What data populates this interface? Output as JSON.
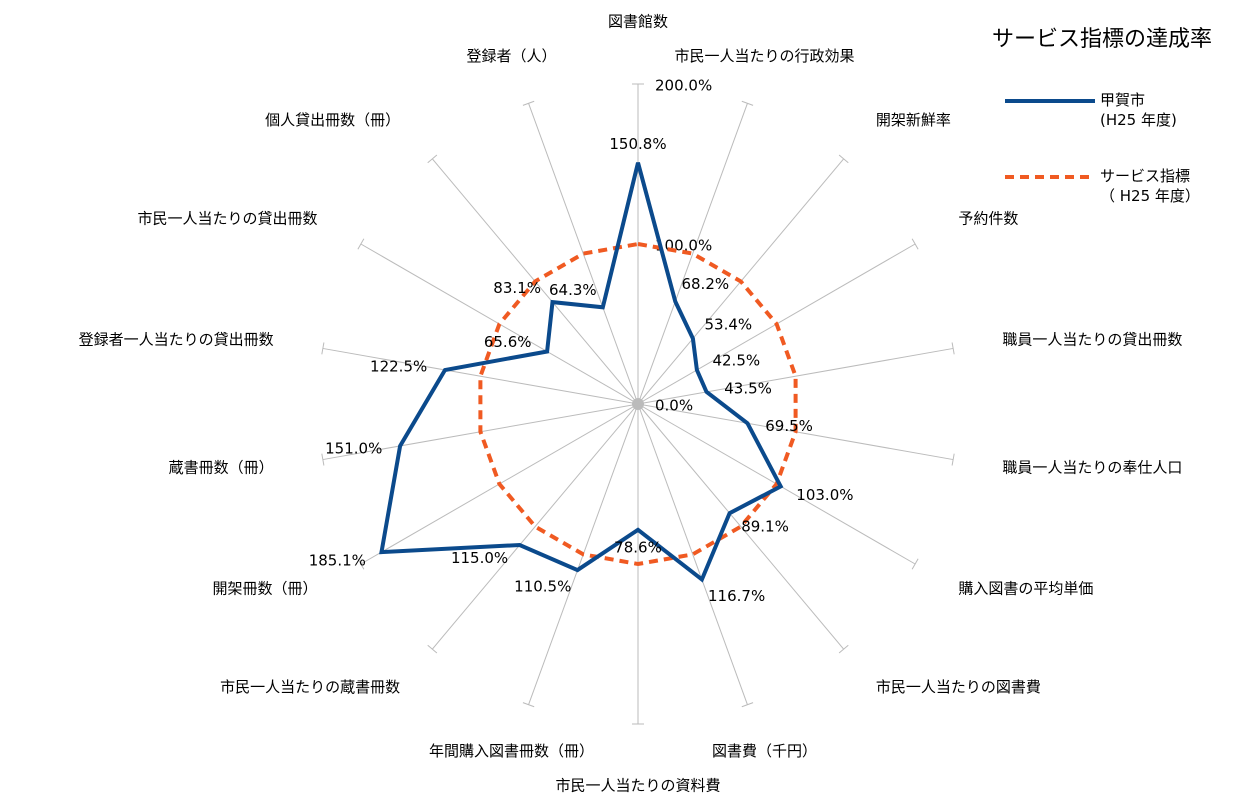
{
  "chart_data": {
    "type": "radar",
    "title": "サービス指標の達成率",
    "categories": [
      "図書館数",
      "市民一人当たりの行政効果",
      "開架新鮮率",
      "予約件数",
      "職員一人当たりの貸出冊数",
      "職員一人当たりの奉仕人口",
      "購入図書の平均単価",
      "市民一人当たりの図書費",
      "図書費（千円）",
      "市民一人当たりの資料費",
      "年間購入図書冊数（冊）",
      "市民一人当たりの蔵書冊数",
      "開架冊数（冊）",
      "蔵書冊数（冊）",
      "登録者一人当たりの貸出冊数",
      "市民一人当たりの貸出冊数",
      "個人貸出冊数（冊）",
      "登録者（人）"
    ],
    "series": [
      {
        "name": "甲賀市\n(H25 年度)",
        "color": "#0b4a8c",
        "style": "solid",
        "values": [
          150.8,
          68.2,
          53.4,
          42.5,
          43.5,
          69.5,
          103.0,
          89.1,
          116.7,
          78.6,
          110.5,
          115.0,
          185.1,
          151.0,
          122.5,
          65.6,
          83.1,
          64.3
        ],
        "value_labels": [
          "150.8%",
          "68.2%",
          "53.4%",
          "42.5%",
          "43.5%",
          "69.5%",
          "103.0%",
          "89.1%",
          "116.7%",
          "78.6%",
          "110.5%",
          "115.0%",
          "185.1%",
          "151.0%",
          "122.5%",
          "65.6%",
          "83.1%",
          "64.3%"
        ]
      },
      {
        "name": "サービス指標\n（ H25 年度）",
        "color": "#f05a22",
        "style": "dashed",
        "values": [
          100,
          100,
          100,
          100,
          100,
          100,
          100,
          100,
          100,
          100,
          100,
          100,
          100,
          100,
          100,
          100,
          100,
          100
        ]
      }
    ],
    "ylim": [
      0,
      200
    ],
    "yticks": [
      {
        "value": 0,
        "label": "0.0%"
      },
      {
        "value": 100,
        "label": "100.0%"
      },
      {
        "value": 200,
        "label": "200.0%"
      }
    ],
    "legend": "top-right"
  }
}
